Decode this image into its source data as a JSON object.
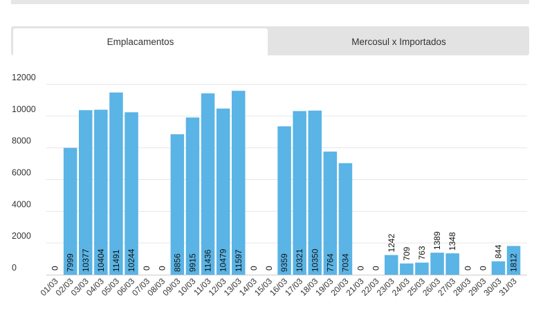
{
  "tabs": [
    {
      "label": "Emplacamentos",
      "active": true
    },
    {
      "label": "Mercosul x Importados",
      "active": false
    }
  ],
  "colors": {
    "bar": "#5ab4e5",
    "grid": "#e6e6e6",
    "tab_bg": "#e3e3e3"
  },
  "chart_data": {
    "type": "bar",
    "categories": [
      "01/03",
      "02/03",
      "03/03",
      "04/03",
      "05/03",
      "06/03",
      "07/03",
      "08/03",
      "09/03",
      "10/03",
      "11/03",
      "12/03",
      "13/03",
      "14/03",
      "15/03",
      "16/03",
      "17/03",
      "18/03",
      "19/03",
      "20/03",
      "21/03",
      "22/03",
      "23/03",
      "24/03",
      "25/03",
      "26/03",
      "27/03",
      "28/03",
      "29/03",
      "30/03",
      "31/03"
    ],
    "values": [
      0,
      7999,
      10377,
      10404,
      11491,
      10244,
      0,
      0,
      8856,
      9915,
      11436,
      10479,
      11597,
      0,
      0,
      9359,
      10321,
      10350,
      7764,
      7034,
      0,
      0,
      1242,
      709,
      763,
      1389,
      1348,
      0,
      0,
      844,
      1812
    ],
    "yticks": [
      0,
      2000,
      4000,
      6000,
      8000,
      10000,
      12000
    ],
    "ylim": [
      0,
      12000
    ],
    "grid": true,
    "title": "",
    "xlabel": "",
    "ylabel": ""
  }
}
